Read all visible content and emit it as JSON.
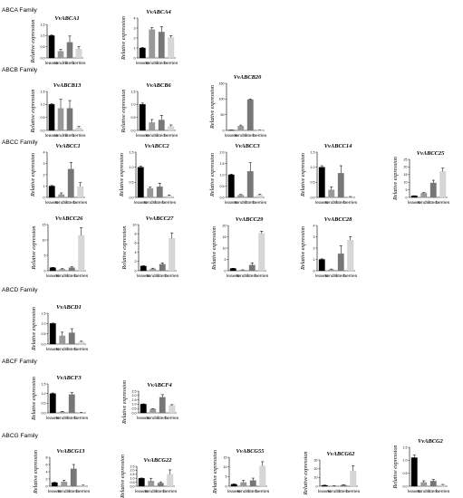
{
  "colors": {
    "leaves": "#000000",
    "tendril": "#999999",
    "stem": "#777777",
    "berries": "#d7d7d7",
    "axis": "#000000",
    "error": "#000000"
  },
  "families": [
    {
      "label": "ABCA Family"
    },
    {
      "label": "ABCB Family"
    },
    {
      "label": "ABCC Family"
    },
    {
      "label": "ABCD Family"
    },
    {
      "label": "ABCF Family"
    },
    {
      "label": "ABCG Family"
    }
  ],
  "chart_data": [
    {
      "type": "bar",
      "family": "ABCA Family",
      "title": "VvABCA1",
      "ylabel": "Relative expression",
      "categories": [
        "leaves",
        "tendril",
        "stem",
        "berries"
      ],
      "values": [
        1.0,
        0.3,
        0.7,
        0.4
      ],
      "errors": [
        0.03,
        0.08,
        0.28,
        0.1
      ],
      "ylim": [
        0,
        1.5
      ],
      "yticks": [
        "0.0",
        "0.5",
        "1.0",
        "1.5"
      ]
    },
    {
      "type": "bar",
      "family": "ABCA Family",
      "title": "VvABCA4",
      "ylabel": "Relative expression",
      "categories": [
        "leaves",
        "tendril",
        "stem",
        "berries"
      ],
      "values": [
        1.0,
        2.85,
        2.6,
        2.05
      ],
      "errors": [
        0.05,
        0.2,
        0.55,
        0.2
      ],
      "ylim": [
        0,
        4
      ],
      "yticks": [
        "0",
        "1",
        "2",
        "3",
        "4"
      ]
    },
    {
      "type": "bar",
      "family": "ABCB Family",
      "title": "VvABCB13",
      "ylabel": "Relative expression",
      "categories": [
        "leaves",
        "tendril",
        "stem",
        "berries"
      ],
      "values": [
        1.0,
        0.85,
        0.85,
        0.1
      ],
      "errors": [
        0.03,
        0.35,
        0.3,
        0.05
      ],
      "ylim": [
        0,
        1.5
      ],
      "yticks": [
        "0.0",
        "0.5",
        "1.0",
        "1.5"
      ]
    },
    {
      "type": "bar",
      "family": "ABCB Family",
      "title": "VvABCB6",
      "ylabel": "Relative expression",
      "categories": [
        "leaves",
        "tendril",
        "stem",
        "berries"
      ],
      "values": [
        1.0,
        0.3,
        0.4,
        0.15
      ],
      "errors": [
        0.05,
        0.12,
        0.18,
        0.06
      ],
      "ylim": [
        0,
        1.5
      ],
      "yticks": [
        "0.0",
        "0.5",
        "1.0",
        "1.5"
      ]
    },
    {
      "type": "bar",
      "family": "ABCB Family",
      "title": "VvABCB20",
      "ylabel": "Relative expression",
      "categories": [
        "leaves",
        "tendril",
        "stem",
        "berries"
      ],
      "values": [
        1.0,
        14,
        98,
        0.5
      ],
      "errors": [
        0.2,
        3,
        2,
        0.2
      ],
      "ylim": [
        0,
        150
      ],
      "yticks": [
        "0",
        "50",
        "100",
        "150"
      ]
    },
    {
      "type": "bar",
      "family": "ABCC Family",
      "title": "VvABCC1",
      "ylabel": "Relative expression",
      "categories": [
        "leaves",
        "tendril",
        "stem",
        "berries"
      ],
      "values": [
        1.0,
        0.25,
        2.5,
        0.95
      ],
      "errors": [
        0.05,
        0.15,
        0.6,
        0.35
      ],
      "ylim": [
        0,
        4
      ],
      "yticks": [
        "0",
        "1",
        "2",
        "3",
        "4"
      ]
    },
    {
      "type": "bar",
      "family": "ABCC Family",
      "title": "VvABCC2",
      "ylabel": "Relative expression",
      "categories": [
        "leaves",
        "tendril",
        "stem",
        "berries"
      ],
      "values": [
        1.0,
        0.3,
        0.35,
        0.05
      ],
      "errors": [
        0.04,
        0.04,
        0.12,
        0.03
      ],
      "ylim": [
        0,
        1.5
      ],
      "yticks": [
        "0.0",
        "0.5",
        "1.0",
        "1.5"
      ]
    },
    {
      "type": "bar",
      "family": "ABCC Family",
      "title": "VvABCC3",
      "ylabel": "Relative expression",
      "categories": [
        "leaves",
        "tendril",
        "stem",
        "berries"
      ],
      "values": [
        1.0,
        0.1,
        1.15,
        0.1
      ],
      "errors": [
        0.03,
        0.03,
        0.38,
        0.04
      ],
      "ylim": [
        0,
        2
      ],
      "yticks": [
        "0.0",
        "0.5",
        "1.0",
        "1.5",
        "2.0"
      ]
    },
    {
      "type": "bar",
      "family": "ABCC Family",
      "title": "VvABCC14",
      "ylabel": "Relative expression",
      "categories": [
        "leaves",
        "tendril",
        "stem",
        "berries"
      ],
      "values": [
        1.0,
        0.25,
        0.8,
        0.02
      ],
      "errors": [
        0.05,
        0.1,
        0.25,
        0.01
      ],
      "ylim": [
        0,
        1.5
      ],
      "yticks": [
        "0.0",
        "0.5",
        "1.0",
        "1.5"
      ]
    },
    {
      "type": "bar",
      "family": "ABCC Family",
      "title": "VvABCC25",
      "ylabel": "Relative expression",
      "categories": [
        "leaves",
        "tendril",
        "stem",
        "berries"
      ],
      "values": [
        1.0,
        2.8,
        9.5,
        17
      ],
      "errors": [
        0.1,
        0.4,
        1.8,
        2.2
      ],
      "ylim": [
        0,
        25
      ],
      "yticks": [
        "0",
        "5",
        "10",
        "15",
        "20",
        "25"
      ]
    },
    {
      "type": "bar",
      "family": "ABCC Family",
      "title": "VvABCC26",
      "ylabel": "Relative expression",
      "categories": [
        "leaves",
        "tendril",
        "stem",
        "berries"
      ],
      "values": [
        1.0,
        0.5,
        1.0,
        11.5
      ],
      "errors": [
        0.1,
        0.2,
        0.3,
        2.5
      ],
      "ylim": [
        0,
        15
      ],
      "yticks": [
        "0",
        "5",
        "10",
        "15"
      ]
    },
    {
      "type": "bar",
      "family": "ABCC Family",
      "title": "VvABCC27",
      "ylabel": "Relative expression",
      "categories": [
        "leaves",
        "tendril",
        "stem",
        "berries"
      ],
      "values": [
        1.0,
        0.4,
        1.4,
        7.0
      ],
      "errors": [
        0.1,
        0.15,
        0.3,
        1.2
      ],
      "ylim": [
        0,
        10
      ],
      "yticks": [
        "0",
        "2",
        "4",
        "6",
        "8",
        "10"
      ]
    },
    {
      "type": "bar",
      "family": "ABCC Family",
      "title": "VvABCC29",
      "ylabel": "Relative expression",
      "categories": [
        "leaves",
        "tendril",
        "stem",
        "berries"
      ],
      "values": [
        1.0,
        0.3,
        2.5,
        16.5
      ],
      "errors": [
        0.1,
        0.1,
        1.0,
        1.0
      ],
      "ylim": [
        0,
        20
      ],
      "yticks": [
        "0",
        "5",
        "10",
        "15",
        "20"
      ]
    },
    {
      "type": "bar",
      "family": "ABCC Family",
      "title": "VvABCC28",
      "ylabel": "Relative expression",
      "categories": [
        "leaves",
        "tendril",
        "stem",
        "berries"
      ],
      "values": [
        1.0,
        0.1,
        1.5,
        2.7
      ],
      "errors": [
        0.05,
        0.05,
        0.7,
        0.3
      ],
      "ylim": [
        0,
        4
      ],
      "yticks": [
        "0",
        "1",
        "2",
        "3",
        "4"
      ]
    },
    {
      "type": "bar",
      "family": "ABCD Family",
      "title": "VvABCD1",
      "ylabel": "Relative expression",
      "categories": [
        "leaves",
        "tendril",
        "stem",
        "berries"
      ],
      "values": [
        1.0,
        0.4,
        0.55,
        0.1
      ],
      "errors": [
        0.02,
        0.18,
        0.2,
        0.04
      ],
      "ylim": [
        0,
        1.5
      ],
      "yticks": [
        "0.0",
        "0.5",
        "1.0",
        "1.5"
      ]
    },
    {
      "type": "bar",
      "family": "ABCF Family",
      "title": "VvABCF3",
      "ylabel": "Relative expression",
      "categories": [
        "leaves",
        "tendril",
        "stem",
        "berries"
      ],
      "values": [
        1.0,
        0.05,
        0.95,
        0.02
      ],
      "errors": [
        0.03,
        0.03,
        0.1,
        0.01
      ],
      "ylim": [
        0,
        1.5
      ],
      "yticks": [
        "0.0",
        "0.5",
        "1.0",
        "1.5"
      ]
    },
    {
      "type": "bar",
      "family": "ABCF Family",
      "title": "VvABCF4",
      "ylabel": "Relative expression",
      "categories": [
        "leaves",
        "tendril",
        "stem",
        "berries"
      ],
      "values": [
        1.0,
        0.45,
        1.8,
        0.85
      ],
      "errors": [
        0.04,
        0.04,
        0.3,
        0.1
      ],
      "ylim": [
        0,
        2.5
      ],
      "yticks": [
        "0.0",
        "0.5",
        "1.0",
        "1.5",
        "2.0",
        "2.5"
      ]
    },
    {
      "type": "bar",
      "family": "ABCG Family",
      "title": "VvABCG13",
      "ylabel": "Relative expression",
      "categories": [
        "leaves",
        "tendril",
        "stem",
        "berries"
      ],
      "values": [
        1.0,
        1.2,
        4.8,
        0.2
      ],
      "errors": [
        0.1,
        0.45,
        1.2,
        0.1
      ],
      "ylim": [
        0,
        8
      ],
      "yticks": [
        "0",
        "2",
        "4",
        "6",
        "8"
      ]
    },
    {
      "type": "bar",
      "family": "ABCG Family",
      "title": "VvABCG22",
      "ylabel": "Relative expression",
      "categories": [
        "leaves",
        "tendril",
        "stem",
        "berries"
      ],
      "values": [
        1.0,
        0.65,
        0.4,
        1.5
      ],
      "errors": [
        0.03,
        0.35,
        0.15,
        0.55
      ],
      "ylim": [
        0,
        2.5
      ],
      "yticks": [
        "0.0",
        "0.5",
        "1.0",
        "1.5",
        "2.0",
        "2.5"
      ]
    },
    {
      "type": "bar",
      "family": "ABCG Family",
      "title": "VvABCG55",
      "ylabel": "Relative expression",
      "categories": [
        "leaves",
        "tendril",
        "stem",
        "berries"
      ],
      "values": [
        1.0,
        2.0,
        3.0,
        10.5
      ],
      "errors": [
        0.2,
        1.0,
        1.2,
        2.2
      ],
      "ylim": [
        0,
        15
      ],
      "yticks": [
        "0",
        "5",
        "10",
        "15"
      ]
    },
    {
      "type": "bar",
      "family": "ABCG Family",
      "title": "VvABCG62",
      "ylabel": "Relative expression",
      "categories": [
        "leaves",
        "tendril",
        "stem",
        "berries"
      ],
      "values": [
        1.0,
        0.5,
        1.2,
        17.5
      ],
      "errors": [
        0.3,
        0.2,
        0.5,
        6.0
      ],
      "ylim": [
        0,
        30
      ],
      "yticks": [
        "0",
        "10",
        "20",
        "30"
      ]
    },
    {
      "type": "bar",
      "family": "ABCG Family",
      "title": "VvABCG2",
      "ylabel": "Relative expression",
      "categories": [
        "leaves",
        "tendril",
        "stem",
        "berries"
      ],
      "values": [
        1.1,
        0.15,
        0.2,
        0.05
      ],
      "errors": [
        0.1,
        0.06,
        0.06,
        0.02
      ],
      "ylim": [
        0,
        1.5
      ],
      "yticks": [
        "0.0",
        "0.5",
        "1.0",
        "1.5"
      ]
    }
  ]
}
